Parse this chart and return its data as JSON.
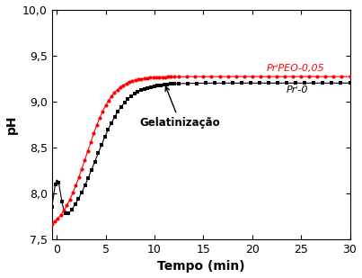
{
  "xlabel": "Tempo (min)",
  "ylabel": "pH",
  "xlim": [
    -0.5,
    30
  ],
  "ylim": [
    7.5,
    10.0
  ],
  "xticks": [
    0,
    5,
    10,
    15,
    20,
    25,
    30
  ],
  "ytick_labels": [
    "7,5",
    "8,0",
    "8,5",
    "9,0",
    "9,5",
    "10,0"
  ],
  "ytick_vals": [
    7.5,
    8.0,
    8.5,
    9.0,
    9.5,
    10.0
  ],
  "annotation_text": "Gelatinização",
  "label_red": "PrⁱPEO-0,05",
  "label_black": "Prⁱ-0",
  "red_color": "#ff0000",
  "black_color": "#000000",
  "background_color": "#ffffff",
  "red_plateau": 9.27,
  "black_plateau": 9.2,
  "red_start": 7.55,
  "black_start": 7.55
}
